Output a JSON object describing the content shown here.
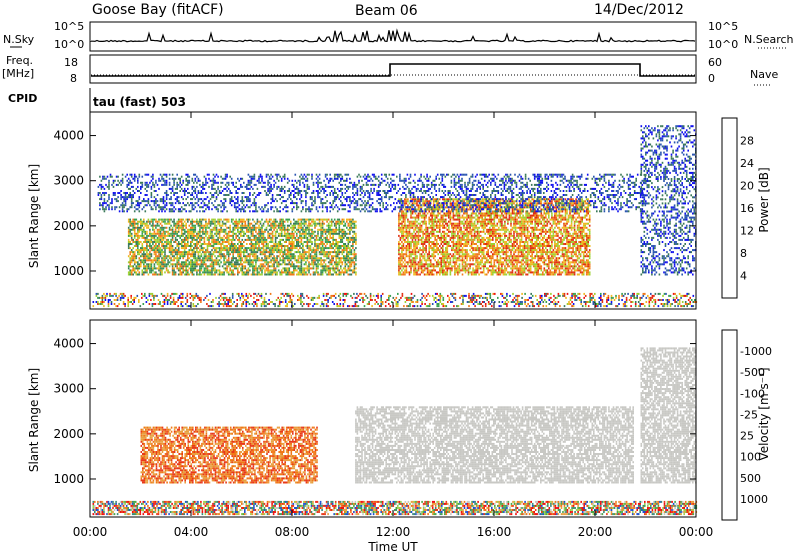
{
  "header": {
    "station": "Goose Bay (fitACF)",
    "beam": "Beam 06",
    "date": "14/Dec/2012"
  },
  "nsky_panel": {
    "left_label": "N.Sky",
    "left_ticks": [
      "10^5",
      "10^0"
    ],
    "right_label": "N.Search",
    "right_ticks": [
      "10^5",
      "10^0"
    ]
  },
  "freq_panel": {
    "left_label_top": "Freq.",
    "left_label_unit": "[MHz]",
    "left_ticks": [
      "18",
      "8"
    ],
    "right_label": "Nave",
    "right_ticks": [
      "60",
      "0"
    ]
  },
  "cpid_panel": {
    "label": "CPID",
    "mode_text": "tau (fast) 503"
  },
  "x_axis": {
    "ticks": [
      "00:00",
      "04:00",
      "08:00",
      "12:00",
      "16:00",
      "20:00",
      "00:00"
    ],
    "label": "Time UT"
  },
  "chart_data": [
    {
      "type": "heatmap",
      "panel": "power",
      "ylabel": "Slant Range [km]",
      "yticks": [
        "1000",
        "2000",
        "3000",
        "4000"
      ],
      "ylim": [
        180,
        4500
      ],
      "xlim_hours": [
        0,
        24
      ],
      "colorbar_label": "Power [dB]",
      "colorbar_ticks": [
        "4",
        "8",
        "12",
        "16",
        "20",
        "24",
        "28"
      ],
      "colorbar_colors": [
        "#1010ee",
        "#2a55b0",
        "#3c7a5a",
        "#38a050",
        "#9ed030",
        "#f0b820",
        "#f07818",
        "#e03010",
        "#ee1010"
      ],
      "regions": [
        {
          "t": [
            0.1,
            24
          ],
          "r": [
            200,
            480
          ],
          "level": "weak-mixed"
        },
        {
          "t": [
            1.5,
            10.5
          ],
          "r": [
            900,
            2150
          ],
          "level": "moderate"
        },
        {
          "t": [
            12.2,
            19.8
          ],
          "r": [
            900,
            2600
          ],
          "level": "strong"
        },
        {
          "t": [
            0.3,
            22
          ],
          "r": [
            2300,
            3150
          ],
          "level": "weak-blue"
        },
        {
          "t": [
            21.8,
            24
          ],
          "r": [
            900,
            4200
          ],
          "level": "weak-blue"
        }
      ]
    },
    {
      "type": "heatmap",
      "panel": "velocity",
      "ylabel": "Slant Range [km]",
      "yticks": [
        "1000",
        "2000",
        "3000",
        "4000"
      ],
      "ylim": [
        180,
        4500
      ],
      "xlim_hours": [
        0,
        24
      ],
      "colorbar_label": "Velocity [m s⁻¹]",
      "colorbar_ticks": [
        "1000",
        "500",
        "100",
        "25",
        "-25",
        "-100",
        "-500",
        "-1000"
      ],
      "colorbar_colors": [
        "#2050d0",
        "#3a8a7a",
        "#4aa848",
        "#9ad050",
        "#c8c8c4",
        "#e8a040",
        "#f07818",
        "#e83818",
        "#ee1010"
      ],
      "regions": [
        {
          "t": [
            0.1,
            24
          ],
          "r": [
            200,
            480
          ],
          "level": "mixed-ground"
        },
        {
          "t": [
            2.0,
            9.0
          ],
          "r": [
            900,
            2150
          ],
          "level": "negative"
        },
        {
          "t": [
            10.5,
            21.5
          ],
          "r": [
            900,
            2600
          ],
          "level": "ground-grey"
        },
        {
          "t": [
            21.8,
            24
          ],
          "r": [
            900,
            3900
          ],
          "level": "ground-grey"
        }
      ]
    }
  ]
}
